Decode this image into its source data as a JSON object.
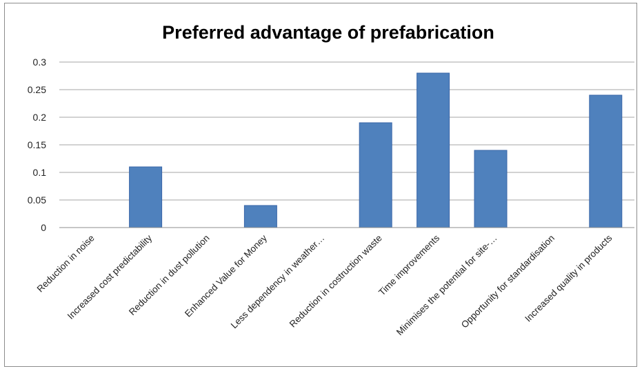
{
  "chart_data": {
    "type": "bar",
    "title": "Preferred advantage of prefabrication",
    "categories": [
      "Reduction in noise",
      "Increased cost predictability",
      "Reduction in dust pollution",
      "Enhanced Value for Money",
      "Less dependency in weather…",
      "Reduction in costruction waste",
      "Time improvements",
      "Minimises the potential for site-…",
      "Opportunity for standardisation",
      "Increased quality in products"
    ],
    "values": [
      0,
      0.11,
      0,
      0.04,
      0,
      0.19,
      0.28,
      0.14,
      0,
      0.24
    ],
    "ylim": [
      0,
      0.3
    ],
    "yticks": [
      "0",
      "0.05",
      "0.1",
      "0.15",
      "0.2",
      "0.25",
      "0.3"
    ],
    "ytick_values": [
      0,
      0.05,
      0.1,
      0.15,
      0.2,
      0.25,
      0.3
    ],
    "grid": true,
    "legend": "none",
    "bar_color": "#4f81bd",
    "bar_edge_color": "#3a66a8"
  }
}
